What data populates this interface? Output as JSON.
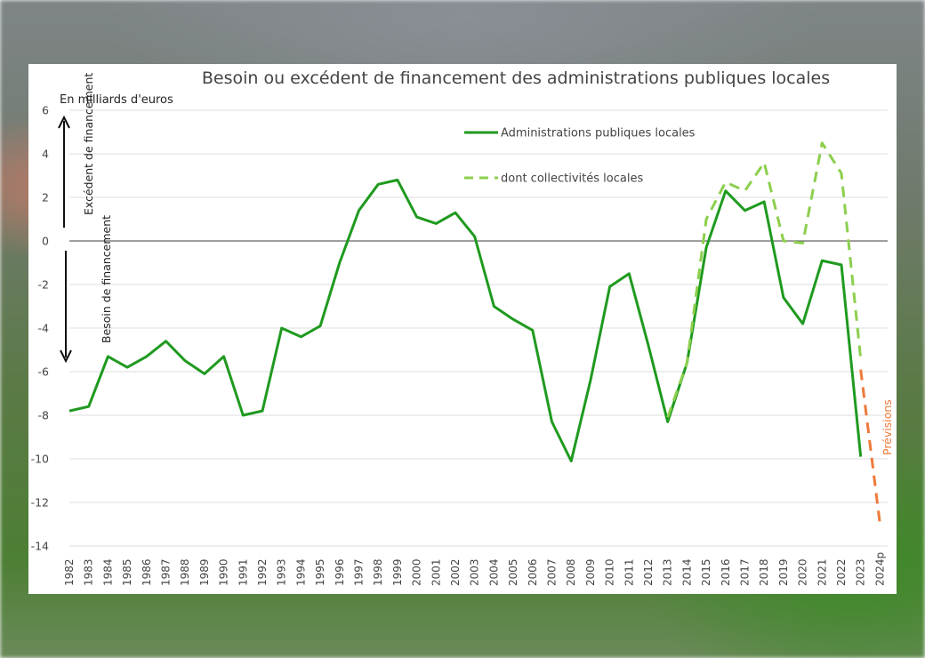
{
  "chart_data": {
    "type": "line",
    "title": "Besoin ou excédent de financement des administrations publiques locales",
    "ylabel": "En milliards d'euros",
    "ylim": [
      -14,
      6
    ],
    "yticks": [
      "6",
      "4",
      "2",
      "0",
      "-2",
      "-4",
      "-6",
      "-8",
      "-10",
      "-12",
      "-14"
    ],
    "categories": [
      "1982",
      "1983",
      "1984",
      "1985",
      "1986",
      "1987",
      "1988",
      "1989",
      "1990",
      "1991",
      "1992",
      "1993",
      "1994",
      "1995",
      "1996",
      "1997",
      "1998",
      "1999",
      "2000",
      "2001",
      "2002",
      "2003",
      "2004",
      "2005",
      "2006",
      "2007",
      "2008",
      "2009",
      "2010",
      "2011",
      "2012",
      "2013",
      "2014",
      "2015",
      "2016",
      "2017",
      "2018",
      "2019",
      "2020",
      "2021",
      "2022",
      "2023",
      "2024p"
    ],
    "series": [
      {
        "name": "Administrations publiques locales",
        "color": "#1f9a1f",
        "style": "solid",
        "values": [
          -7.8,
          -7.6,
          -5.3,
          -5.8,
          -5.3,
          -4.6,
          -5.5,
          -6.1,
          -5.3,
          -8.0,
          -7.8,
          -4.0,
          -4.4,
          -3.9,
          -1.0,
          1.4,
          2.6,
          2.8,
          1.1,
          0.8,
          1.3,
          0.2,
          -3.0,
          -3.6,
          -4.1,
          -8.3,
          -10.1,
          -6.4,
          -2.1,
          -1.5,
          -4.8,
          -8.3,
          -5.6,
          -0.3,
          2.3,
          1.4,
          1.8,
          -2.6,
          -3.8,
          -0.9,
          -1.1,
          -9.9,
          null
        ]
      },
      {
        "name": "dont collectivités locales",
        "color": "#8ccf4d",
        "style": "dashed",
        "values": [
          null,
          null,
          null,
          null,
          null,
          null,
          null,
          null,
          null,
          null,
          null,
          null,
          null,
          null,
          null,
          null,
          null,
          null,
          null,
          null,
          null,
          null,
          null,
          null,
          null,
          null,
          null,
          null,
          null,
          null,
          null,
          -8.1,
          -5.6,
          1.0,
          2.7,
          2.3,
          3.6,
          0.0,
          -0.1,
          4.5,
          3.1,
          -5.4,
          null
        ]
      },
      {
        "color": "#f07a3a",
        "style": "dashed",
        "values": [
          null,
          null,
          null,
          null,
          null,
          null,
          null,
          null,
          null,
          null,
          null,
          null,
          null,
          null,
          null,
          null,
          null,
          null,
          null,
          null,
          null,
          null,
          null,
          null,
          null,
          null,
          null,
          null,
          null,
          null,
          null,
          null,
          null,
          null,
          null,
          null,
          null,
          null,
          null,
          null,
          null,
          -5.9,
          -13.0
        ]
      }
    ],
    "annotations": {
      "excedent": "Excédent de financement",
      "besoin": "Besoin de financement",
      "previsions": "Prévisions"
    },
    "legend_position": "top-right",
    "grid": true
  },
  "colors": {
    "axis_text": "#444444",
    "grid": "#dddddd",
    "zero_line": "#666666",
    "forecast": "#f07a3a"
  }
}
